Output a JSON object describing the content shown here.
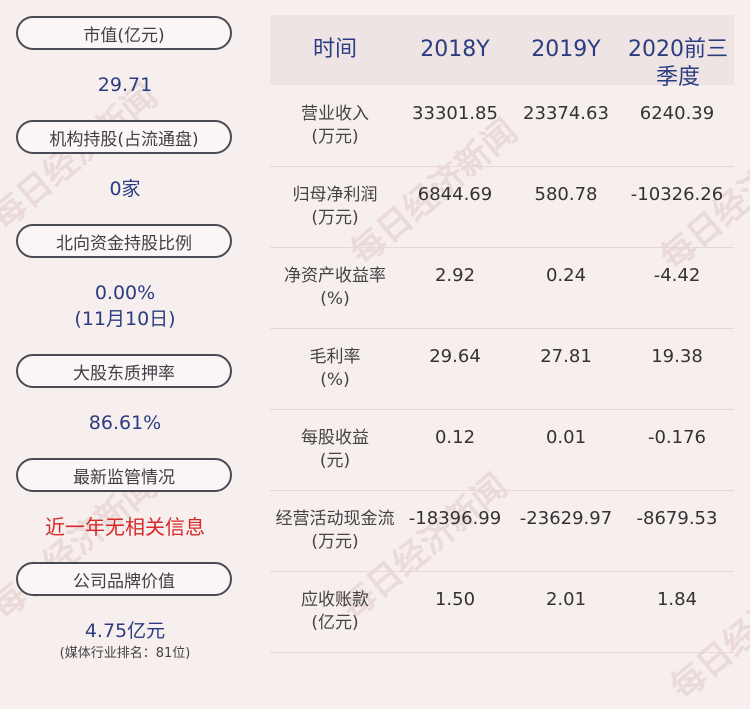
{
  "left_panel": {
    "items": [
      {
        "label": "市值(亿元)",
        "value": "29.71"
      },
      {
        "label": "机构持股(占流通盘)",
        "value": "0家"
      },
      {
        "label": "北向资金持股比例",
        "value": "0.00%",
        "value2": "(11月10日)"
      },
      {
        "label": "大股东质押率",
        "value": "86.61%"
      },
      {
        "label": "最新监管情况",
        "value": "近一年无相关信息"
      },
      {
        "label": "公司品牌价值",
        "value": "4.75亿元",
        "note": "(媒体行业排名：81位)"
      }
    ]
  },
  "table": {
    "headers": [
      "时间",
      "2018Y",
      "2019Y",
      "2020前三季度"
    ],
    "rows": [
      {
        "label": "营业收入",
        "unit": "(万元)",
        "values": [
          "33301.85",
          "23374.63",
          "6240.39"
        ]
      },
      {
        "label": "归母净利润",
        "unit": "(万元)",
        "values": [
          "6844.69",
          "580.78",
          "-10326.26"
        ]
      },
      {
        "label": "净资产收益率",
        "unit": "(%)",
        "values": [
          "2.92",
          "0.24",
          "-4.42"
        ]
      },
      {
        "label": "毛利率",
        "unit": "(%)",
        "values": [
          "29.64",
          "27.81",
          "19.38"
        ]
      },
      {
        "label": "每股收益",
        "unit": "(元)",
        "values": [
          "0.12",
          "0.01",
          "-0.176"
        ]
      },
      {
        "label": "经营活动现金流",
        "unit": "(万元)",
        "values": [
          "-18396.99",
          "-23629.97",
          "-8679.53"
        ]
      },
      {
        "label": "应收账款",
        "unit": "(亿元)",
        "values": [
          "1.50",
          "2.01",
          "1.84"
        ]
      }
    ]
  },
  "watermark": "每日经济新闻"
}
